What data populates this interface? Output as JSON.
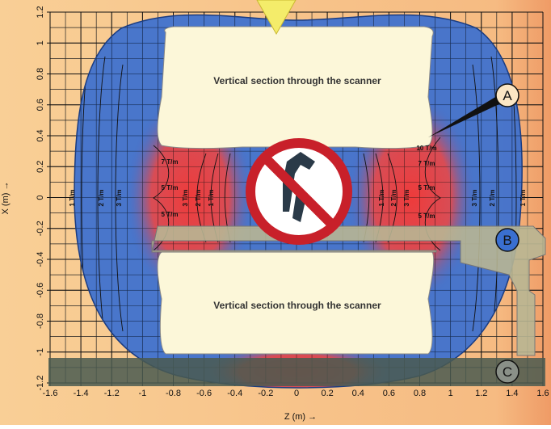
{
  "axes": {
    "x": {
      "label": "Z (m) →",
      "range": [
        -1.6,
        1.6
      ],
      "ticks": [
        -1.6,
        -1.4,
        -1.2,
        -1,
        -0.8,
        -0.6,
        -0.4,
        -0.2,
        0,
        0.2,
        0.4,
        0.6,
        0.8,
        1,
        1.2,
        1.4,
        1.6
      ]
    },
    "y": {
      "label": "X (m) →",
      "range": [
        -1.2,
        1.2
      ],
      "ticks": [
        -1.2,
        -1,
        -0.8,
        -0.6,
        -0.4,
        -0.2,
        0,
        0.2,
        0.4,
        0.6,
        0.8,
        1,
        1.2
      ]
    }
  },
  "sections": [
    "Vertical section through the scanner",
    "Vertical section through the scanner"
  ],
  "markers": [
    "A",
    "B",
    "C"
  ],
  "contour_labels": [
    "1 T/m",
    "2 T/m",
    "3 T/m",
    "7 T/m",
    "5 T/m",
    "5 T/m",
    "3 T/m",
    "2 T/m",
    "1 T/m",
    "1 T/m",
    "2 T/m",
    "3 T/m",
    "10 T/m",
    "7 T/m",
    "5 T/m",
    "5 T/m",
    "3 T/m",
    "2 T/m",
    "1 T/m"
  ]
}
